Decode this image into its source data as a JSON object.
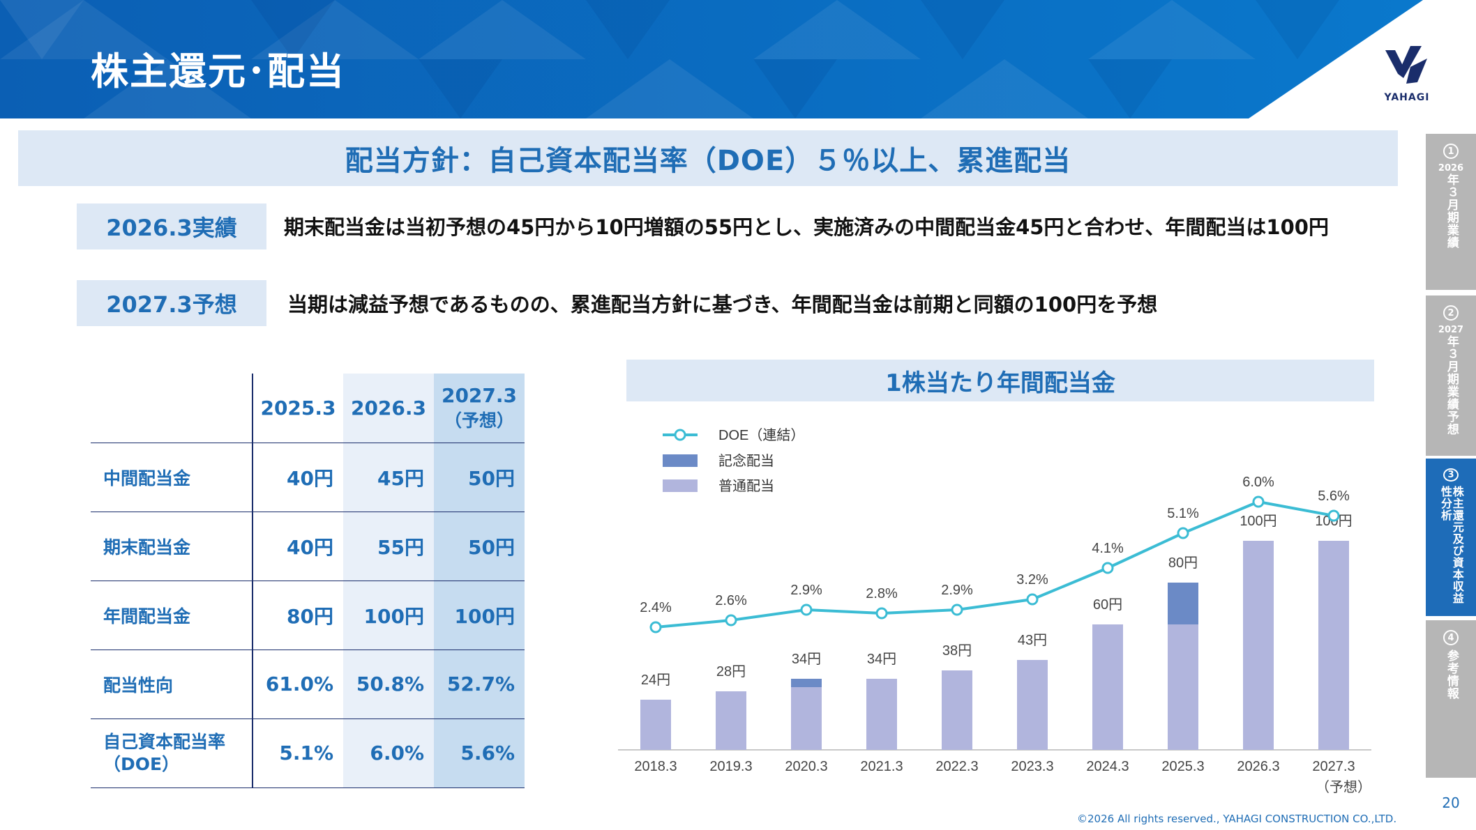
{
  "header": {
    "title": "株主還元･配当",
    "logo_text": "YAHAGI"
  },
  "policy": {
    "text": "配当方針：自己資本配当率（DOE）５％以上、累進配当"
  },
  "rows": {
    "actual_label": "2026.3実績",
    "actual_text": "期末配当金は当初予想の45円から10円増額の55円とし、実施済みの中間配当金45円と合わせ、年間配当は100円",
    "forecast_label": "2027.3予想",
    "forecast_text": "当期は減益予想であるものの、累進配当方針に基づき、年間配当金は前期と同額の100円を予想"
  },
  "table": {
    "columns": [
      "2025.3",
      "2026.3",
      "2027.3"
    ],
    "column_sub": [
      "",
      "",
      "（予想）"
    ],
    "rows": [
      {
        "label": "中間配当金",
        "values": [
          "40円",
          "45円",
          "50円"
        ]
      },
      {
        "label": "期末配当金",
        "values": [
          "40円",
          "55円",
          "50円"
        ]
      },
      {
        "label": "年間配当金",
        "values": [
          "80円",
          "100円",
          "100円"
        ]
      },
      {
        "label": "配当性向",
        "values": [
          "61.0%",
          "50.8%",
          "52.7%"
        ]
      },
      {
        "label": "自己資本配当率\n（DOE）",
        "values": [
          "5.1%",
          "6.0%",
          "5.6%"
        ]
      }
    ]
  },
  "chart_title": "1株当たり年間配当金",
  "chart_data": {
    "type": "bar",
    "categories": [
      "2018.3",
      "2019.3",
      "2020.3",
      "2021.3",
      "2022.3",
      "2023.3",
      "2024.3",
      "2025.3",
      "2026.3",
      "2027.3"
    ],
    "category_sub": [
      "",
      "",
      "",
      "",
      "",
      "",
      "",
      "",
      "",
      "（予想）"
    ],
    "series": [
      {
        "name": "普通配当",
        "kind": "bar",
        "values": [
          24,
          28,
          30,
          34,
          38,
          43,
          60,
          60,
          100,
          100
        ],
        "color": "#b1b5dd"
      },
      {
        "name": "記念配当",
        "kind": "bar",
        "values": [
          0,
          0,
          4,
          0,
          0,
          0,
          0,
          20,
          0,
          0
        ],
        "color": "#6b8ac6"
      },
      {
        "name": "DOE（連結）",
        "kind": "line",
        "values": [
          2.4,
          2.6,
          2.9,
          2.8,
          2.9,
          3.2,
          4.1,
          5.1,
          6.0,
          5.6
        ],
        "color": "#3bbcd4"
      }
    ],
    "bar_labels": [
      "24円",
      "28円",
      "34円",
      "34円",
      "38円",
      "43円",
      "60円",
      "80円",
      "100円",
      "100円"
    ],
    "line_labels": [
      "2.4%",
      "2.6%",
      "2.9%",
      "2.8%",
      "2.9%",
      "3.2%",
      "4.1%",
      "5.1%",
      "6.0%",
      "5.6%"
    ],
    "legend": [
      "DOE（連結）",
      "記念配当",
      "普通配当"
    ],
    "legend_position": "top-left",
    "bar_ylim": [
      0,
      100
    ],
    "line_ylim": [
      0,
      6.0
    ]
  },
  "nav": [
    {
      "num": "1",
      "year": "2026",
      "label": "年３月期業績",
      "active": false
    },
    {
      "num": "2",
      "year": "2027",
      "label": "年３月期業績予想",
      "active": false
    },
    {
      "num": "3",
      "year": "",
      "label": "株主還元及び資本収益性分析",
      "active": true
    },
    {
      "num": "4",
      "year": "",
      "label": "参考情報",
      "active": false
    }
  ],
  "colors": {
    "brand_blue": "#1f6db5",
    "header_blue": "#0a66c2",
    "light_blue_bg": "#dde8f5",
    "navy": "#1a2d6b"
  },
  "footer": {
    "page_number": "20",
    "copyright": "©2026  All  rights  reserved.,  YAHAGI  CONSTRUCTION  CO.,LTD."
  }
}
